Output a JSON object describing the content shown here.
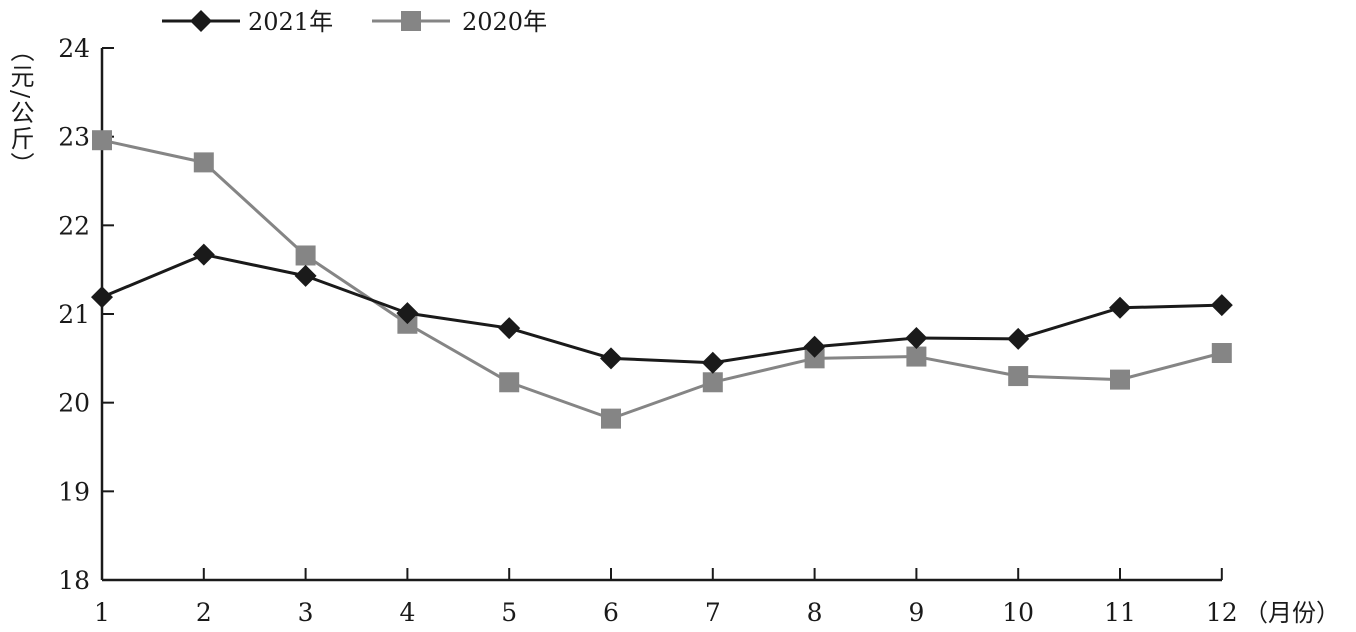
{
  "chart_data": {
    "type": "line",
    "title": "",
    "xlabel": "（月份）",
    "ylabel": "（元/公斤）",
    "categories": [
      "1",
      "2",
      "3",
      "4",
      "5",
      "6",
      "7",
      "8",
      "9",
      "10",
      "11",
      "12"
    ],
    "ylim": [
      18,
      24
    ],
    "yticks": [
      "18",
      "19",
      "20",
      "21",
      "22",
      "23",
      "24"
    ],
    "grid": false,
    "legend_position": "top-left",
    "series": [
      {
        "name": "2021年",
        "color": "#1a1a1a",
        "marker": "diamond",
        "values": [
          21.19,
          21.67,
          21.43,
          21.01,
          20.84,
          20.5,
          20.45,
          20.63,
          20.73,
          20.72,
          21.07,
          21.1
        ]
      },
      {
        "name": "2020年",
        "color": "#858585",
        "marker": "square",
        "values": [
          22.96,
          22.71,
          21.66,
          20.89,
          20.23,
          19.82,
          20.23,
          20.5,
          20.52,
          20.3,
          20.26,
          20.56
        ]
      }
    ]
  }
}
